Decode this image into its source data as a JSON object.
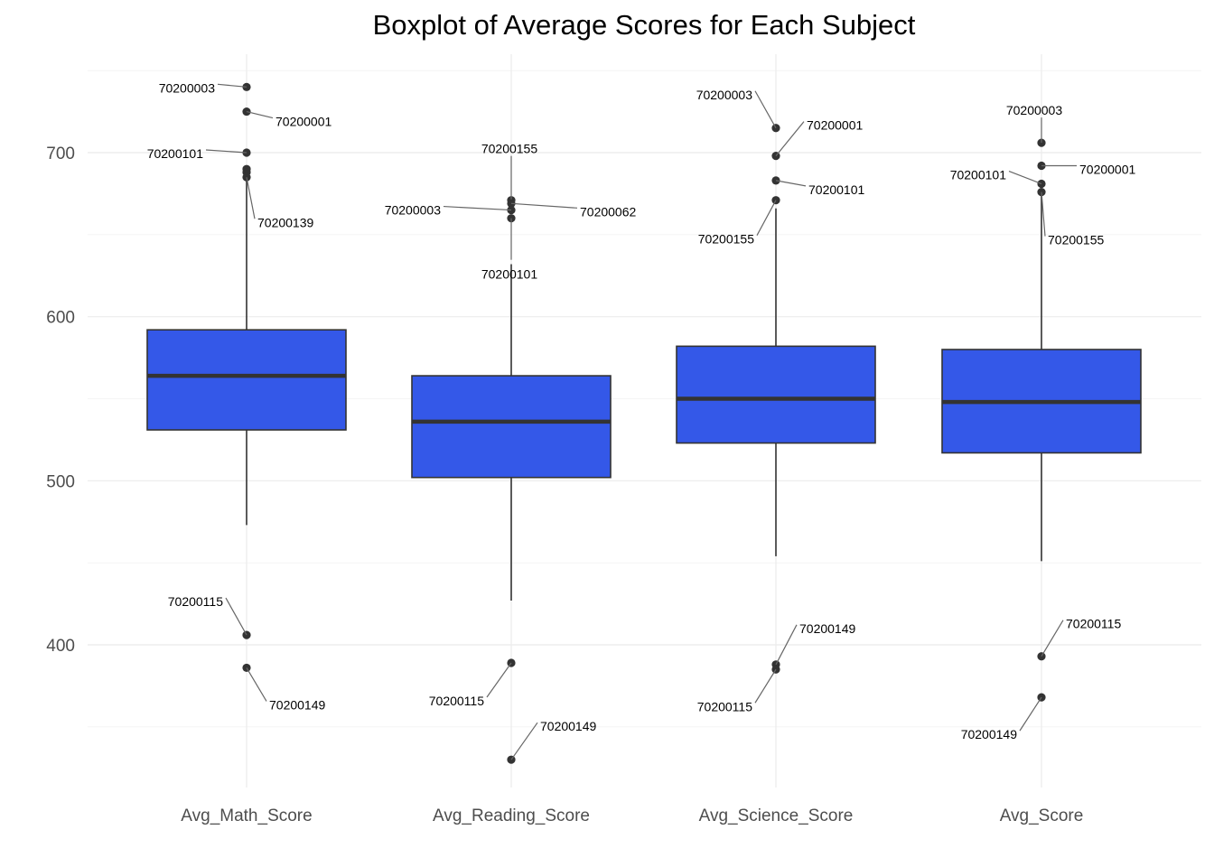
{
  "chart_data": {
    "type": "boxplot",
    "title": "Boxplot of Average Scores for Each Subject",
    "xlabel": "",
    "ylabel": "",
    "ylim": [
      310,
      755
    ],
    "y_ticks": [
      400,
      500,
      600,
      700
    ],
    "grid": true,
    "box_color": "#3458E8",
    "outline_color": "#333333",
    "categories": [
      "Avg_Math_Score",
      "Avg_Reading_Score",
      "Avg_Science_Score",
      "Avg_Score"
    ],
    "boxes": [
      {
        "category": "Avg_Math_Score",
        "whisker_low": 473,
        "q1": 531,
        "median": 564,
        "q3": 592,
        "whisker_high": 684,
        "outliers": [
          {
            "label": "70200003",
            "value": 740
          },
          {
            "label": "70200001",
            "value": 725
          },
          {
            "label": "70200101",
            "value": 700
          },
          {
            "label": "",
            "value": 690
          },
          {
            "label": "",
            "value": 688
          },
          {
            "label": "70200139",
            "value": 685
          },
          {
            "label": "70200115",
            "value": 406
          },
          {
            "label": "70200149",
            "value": 386
          }
        ]
      },
      {
        "category": "Avg_Reading_Score",
        "whisker_low": 427,
        "q1": 502,
        "median": 536,
        "q3": 564,
        "whisker_high": 632,
        "outliers": [
          {
            "label": "70200155",
            "value": 671
          },
          {
            "label": "70200062",
            "value": 669
          },
          {
            "label": "70200003",
            "value": 665
          },
          {
            "label": "70200101",
            "value": 660
          },
          {
            "label": "70200115",
            "value": 389
          },
          {
            "label": "70200149",
            "value": 330
          }
        ]
      },
      {
        "category": "Avg_Science_Score",
        "whisker_low": 454,
        "q1": 523,
        "median": 550,
        "q3": 582,
        "whisker_high": 666,
        "outliers": [
          {
            "label": "70200003",
            "value": 715
          },
          {
            "label": "70200001",
            "value": 698
          },
          {
            "label": "70200101",
            "value": 683
          },
          {
            "label": "70200155",
            "value": 671
          },
          {
            "label": "70200149",
            "value": 388
          },
          {
            "label": "70200115",
            "value": 385
          }
        ]
      },
      {
        "category": "Avg_Score",
        "whisker_low": 451,
        "q1": 517,
        "median": 548,
        "q3": 580,
        "whisker_high": 675,
        "outliers": [
          {
            "label": "70200003",
            "value": 706
          },
          {
            "label": "70200001",
            "value": 692
          },
          {
            "label": "70200101",
            "value": 681
          },
          {
            "label": "70200155",
            "value": 676
          },
          {
            "label": "70200115",
            "value": 393
          },
          {
            "label": "70200149",
            "value": 368
          }
        ]
      }
    ]
  }
}
